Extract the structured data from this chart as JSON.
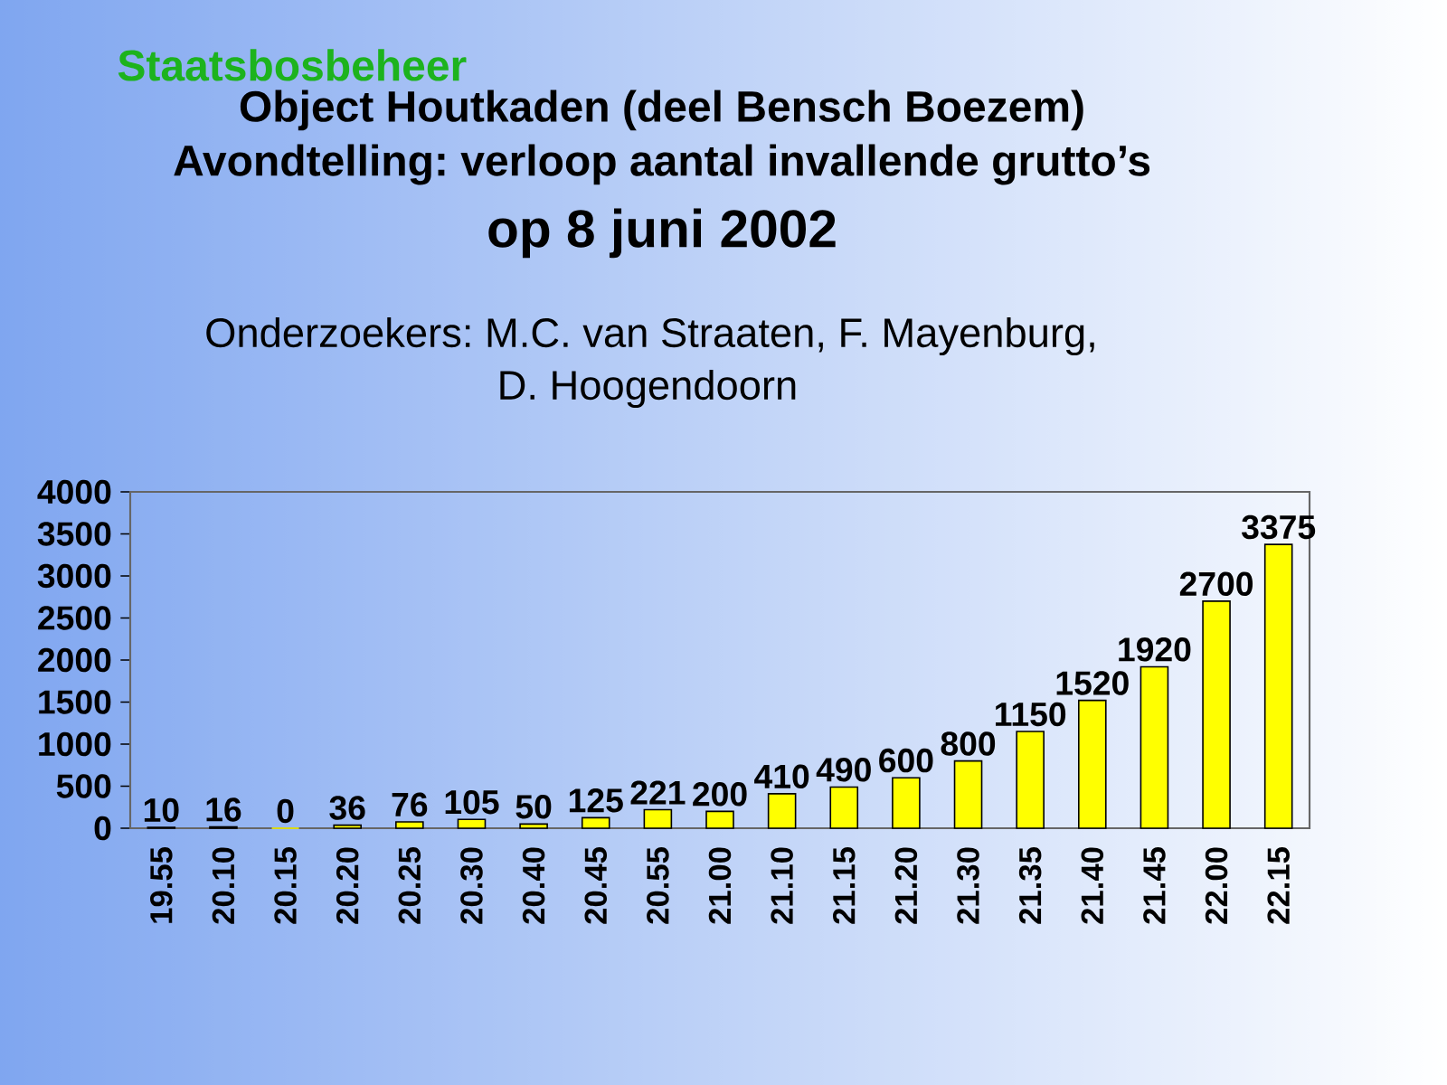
{
  "chart_data": {
    "type": "bar",
    "title": "Object Houtkaden (deel Bensch Boezem)",
    "subtitle": "Avondtelling: verloop aantal invallende grutto’s",
    "annotations": [
      "op 8 juni 2002",
      "Onderzoekers: M.C. van Straaten, F. Mayenburg,",
      "D. Hoogendoorn",
      "Staatsbosbeheer"
    ],
    "categories": [
      "19.55",
      "20.10",
      "20.15",
      "20.20",
      "20.25",
      "20.30",
      "20.40",
      "20.45",
      "20.55",
      "21.00",
      "21.10",
      "21.15",
      "21.20",
      "21.30",
      "21.35",
      "21.40",
      "21.45",
      "22.00",
      "22.15"
    ],
    "values": [
      10,
      16,
      0,
      36,
      76,
      105,
      50,
      125,
      221,
      200,
      410,
      490,
      600,
      800,
      1150,
      1520,
      1920,
      2700,
      3375
    ],
    "color": "#ffff00",
    "ylim": [
      0,
      4000
    ],
    "yticks": [
      0,
      500,
      1000,
      1500,
      2000,
      2500,
      3000,
      3500,
      4000
    ],
    "data_labels": true
  }
}
